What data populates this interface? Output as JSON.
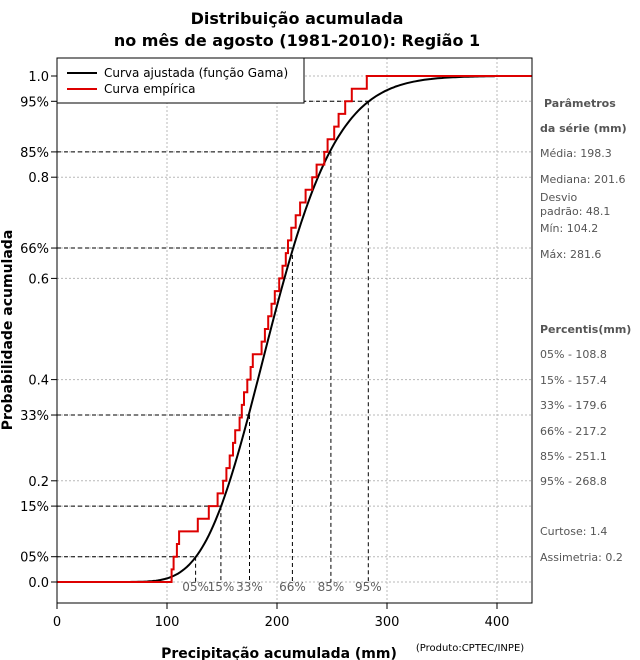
{
  "chart_data": {
    "type": "line",
    "title": "Distribuição acumulada",
    "subtitle": "no mês de agosto (1981-2010): Região 1",
    "xlabel": "Precipitação acumulada (mm)",
    "ylabel": "Probabilidade acumulada",
    "credit": "(Produto:CPTEC/INPE)",
    "xlim": [
      0,
      430
    ],
    "ylim": [
      -0.02,
      1.03
    ],
    "x_ticks": [
      "0",
      "100",
      "200",
      "300",
      "400"
    ],
    "x_tick_values": [
      0,
      100,
      200,
      300,
      400
    ],
    "y_ticks": [
      {
        "label": "0.0",
        "value": 0.0,
        "kind": "axis"
      },
      {
        "label": "05%",
        "value": 0.05,
        "kind": "percentile"
      },
      {
        "label": "15%",
        "value": 0.15,
        "kind": "percentile"
      },
      {
        "label": "0.2",
        "value": 0.2,
        "kind": "axis"
      },
      {
        "label": "33%",
        "value": 0.33,
        "kind": "percentile"
      },
      {
        "label": "0.4",
        "value": 0.4,
        "kind": "axis"
      },
      {
        "label": "0.6",
        "value": 0.6,
        "kind": "axis"
      },
      {
        "label": "66%",
        "value": 0.66,
        "kind": "percentile"
      },
      {
        "label": "0.8",
        "value": 0.8,
        "kind": "axis"
      },
      {
        "label": "85%",
        "value": 0.85,
        "kind": "percentile"
      },
      {
        "label": "95%",
        "value": 0.95,
        "kind": "percentile"
      },
      {
        "label": "1.0",
        "value": 1.0,
        "kind": "axis"
      }
    ],
    "grid": true,
    "legend_position": "top-left",
    "series": [
      {
        "name": "Curva ajustada (função Gama)",
        "color": "#000000",
        "style": "line",
        "gamma_mean": 198.3,
        "gamma_sd": 48.1,
        "x_range": [
          0,
          398
        ]
      },
      {
        "name": "Curva empírica",
        "color": "#dd0000",
        "style": "step",
        "x": [
          104.2,
          106,
          109,
          111,
          128,
          138,
          146,
          151,
          154,
          157,
          160,
          162,
          166,
          168,
          170,
          173,
          176,
          178,
          186,
          189,
          192,
          195,
          198,
          202,
          205,
          208,
          210,
          213,
          217,
          221,
          226,
          232,
          236,
          243,
          246,
          252,
          256,
          262,
          268,
          281.6
        ],
        "y": [
          0.025,
          0.05,
          0.075,
          0.1,
          0.125,
          0.15,
          0.175,
          0.2,
          0.225,
          0.25,
          0.275,
          0.3,
          0.325,
          0.35,
          0.375,
          0.4,
          0.425,
          0.45,
          0.475,
          0.5,
          0.525,
          0.55,
          0.575,
          0.6,
          0.625,
          0.65,
          0.675,
          0.7,
          0.725,
          0.75,
          0.775,
          0.8,
          0.825,
          0.85,
          0.875,
          0.9,
          0.925,
          0.95,
          0.975,
          1.0
        ]
      }
    ],
    "percentiles": [
      {
        "label": "05%",
        "p": 0.05,
        "x": 126
      },
      {
        "label": "15%",
        "p": 0.15,
        "x": 149
      },
      {
        "label": "33%",
        "p": 0.33,
        "x": 175
      },
      {
        "label": "66%",
        "p": 0.66,
        "x": 214
      },
      {
        "label": "85%",
        "p": 0.85,
        "x": 249
      },
      {
        "label": "95%",
        "p": 0.95,
        "x": 283
      }
    ],
    "stats_panel": {
      "params_title_1": "Parâmetros",
      "params_title_2": "da série (mm)",
      "media": "Média: 198.3",
      "mediana": "Mediana: 201.6",
      "desvio_1": "Desvio",
      "desvio_2": "padrão: 48.1",
      "min": "Mín: 104.2",
      "max": "Máx: 281.6",
      "percentis_title": "Percentis(mm)",
      "p05": "05% - 108.8",
      "p15": "15% - 157.4",
      "p33": "33% - 179.6",
      "p66": "66% - 217.2",
      "p85": "85% - 251.1",
      "p95": "95% - 268.8",
      "curtose": "Curtose: 1.4",
      "assimetria": "Assimetria: 0.2"
    }
  }
}
